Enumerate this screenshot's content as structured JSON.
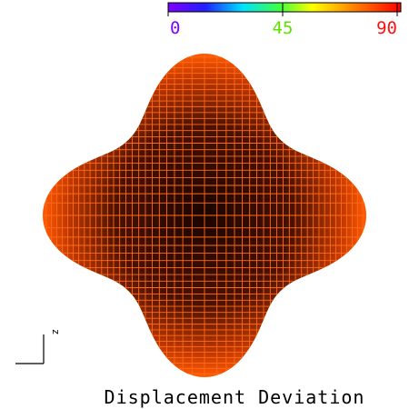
{
  "colorbar": {
    "ticks": [
      0,
      45,
      90
    ]
  },
  "axis_label": "z",
  "title": "Displacement Deviation"
}
